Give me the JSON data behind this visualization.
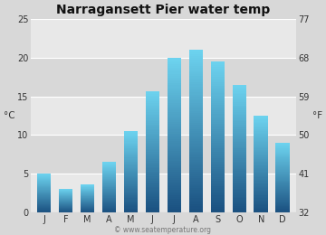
{
  "title": "Narragansett Pier water temp",
  "months": [
    "J",
    "F",
    "M",
    "A",
    "M",
    "J",
    "J",
    "A",
    "S",
    "O",
    "N",
    "D"
  ],
  "values_c": [
    5.0,
    3.1,
    3.6,
    6.5,
    10.5,
    15.7,
    19.9,
    21.0,
    19.5,
    16.5,
    12.5,
    9.0
  ],
  "ylim_c": [
    0,
    25
  ],
  "yticks_c": [
    0,
    5,
    10,
    15,
    20,
    25
  ],
  "yticks_f": [
    32,
    41,
    50,
    59,
    68,
    77
  ],
  "ylabel_left": "°C",
  "ylabel_right": "°F",
  "bar_color_top": "#6dd4f0",
  "bar_color_bottom": "#1a5080",
  "background_color": "#d8d8d8",
  "plot_bg_light": "#e8e8e8",
  "plot_bg_dark": "#d8d8d8",
  "grid_color": "#ffffff",
  "title_fontsize": 10,
  "axis_fontsize": 7.5,
  "tick_fontsize": 7,
  "watermark": "© www.seatemperature.org",
  "bar_width": 0.65
}
